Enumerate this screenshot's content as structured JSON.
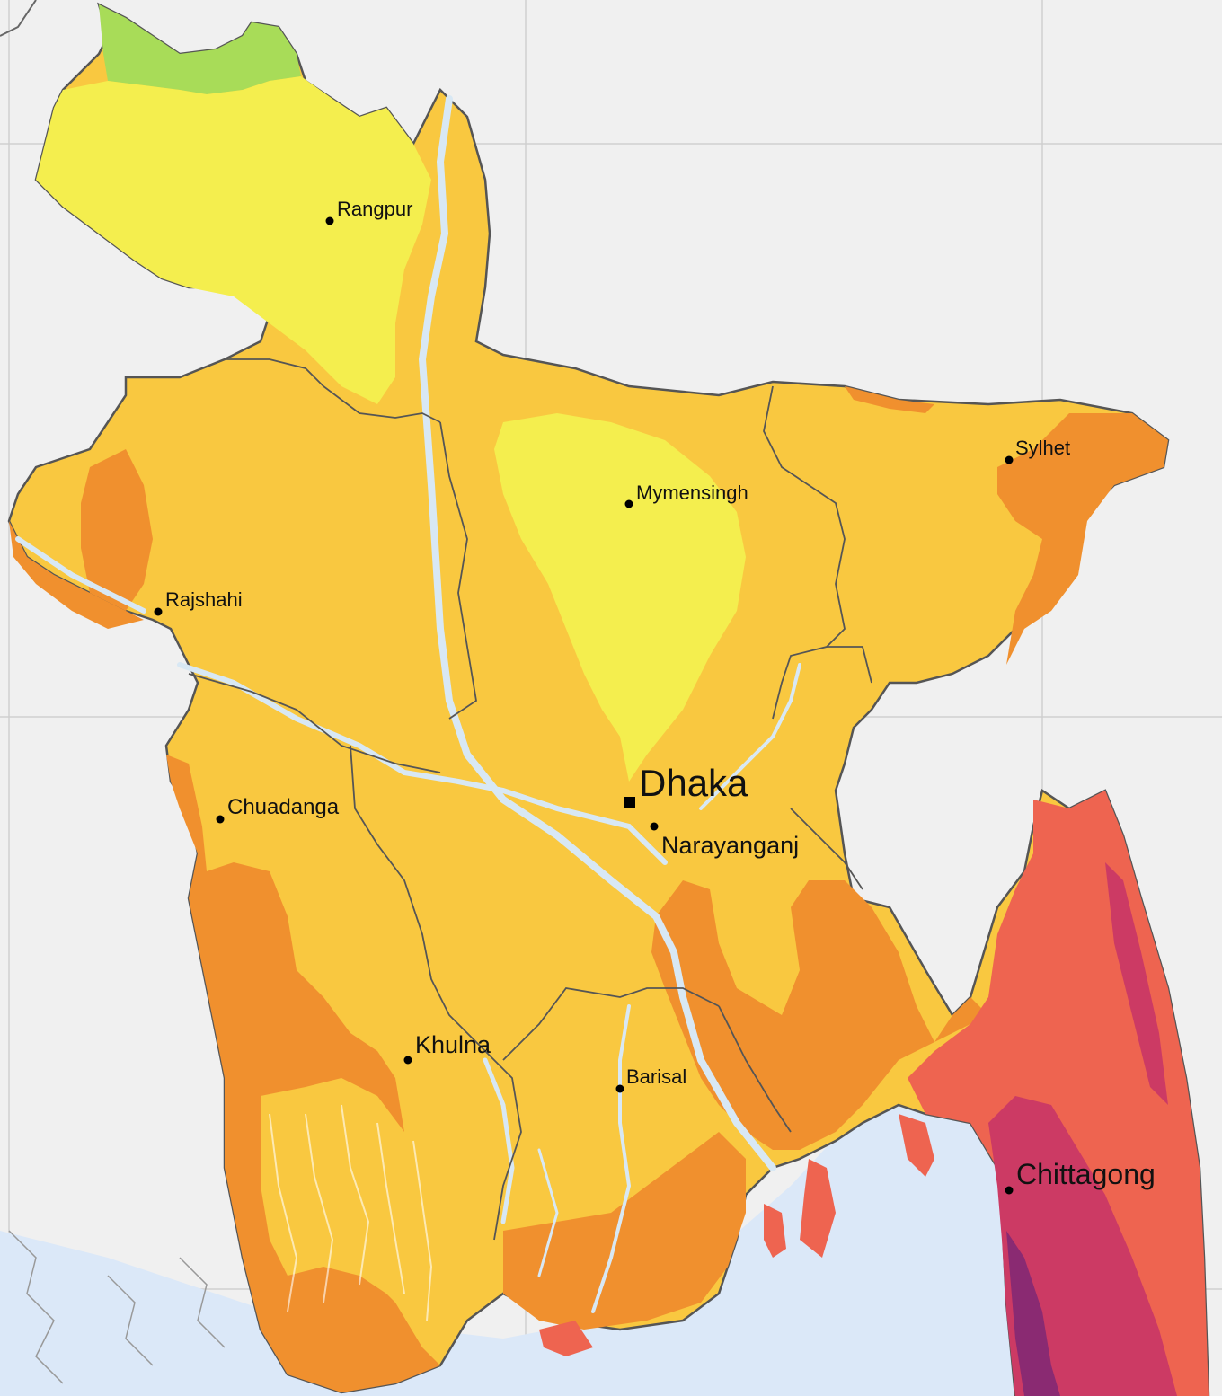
{
  "map": {
    "cities": [
      {
        "id": "rangpur",
        "name": "Rangpur"
      },
      {
        "id": "mymensingh",
        "name": "Mymensingh"
      },
      {
        "id": "sylhet",
        "name": "Sylhet"
      },
      {
        "id": "rajshahi",
        "name": "Rajshahi"
      },
      {
        "id": "dhaka",
        "name": "Dhaka"
      },
      {
        "id": "narayanganj",
        "name": "Narayanganj"
      },
      {
        "id": "chuadanga",
        "name": "Chuadanga"
      },
      {
        "id": "khulna",
        "name": "Khulna"
      },
      {
        "id": "barisal",
        "name": "Barisal"
      },
      {
        "id": "chittagong",
        "name": "Chittagong"
      }
    ],
    "colors": {
      "background": "#f0f0f0",
      "sea": "#dbe8f8",
      "green": "#a8dc58",
      "light_yellow": "#f4ee4e",
      "yellow": "#f9c840",
      "orange": "#f0902e",
      "red_orange": "#ee6450",
      "crimson": "#cc3a64",
      "purple": "#8a2a72",
      "river": "#d8e8f4",
      "border": "#555555",
      "grid": "#cfcfcf"
    }
  }
}
